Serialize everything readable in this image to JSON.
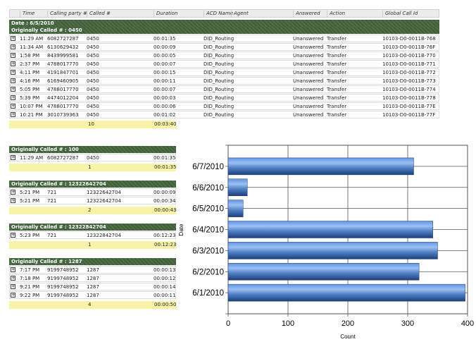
{
  "columns": [
    "Time",
    "Calling party #",
    "Called #",
    "Duration",
    "ACD Name",
    "Agent",
    "Answered",
    "Action",
    "Global Call Id"
  ],
  "date_band": "Date : 6/5/2010",
  "main_group": {
    "title": "Originally Called # : 0450",
    "rows": [
      [
        "11:29 AM",
        "6082727287",
        "0450",
        "00:01:35",
        "DID_Routing",
        "",
        "Unanswered",
        "Transfer",
        "10103-D0-0011B-768"
      ],
      [
        "11:34 AM",
        "6130629432",
        "0450",
        "00:00:09",
        "DID_Routing",
        "",
        "Unanswered",
        "Transfer",
        "10103-D0-0011B-76F"
      ],
      [
        "1:58 PM",
        "8439999581",
        "0450",
        "00:00:05",
        "DID_Routing",
        "",
        "Unanswered",
        "Transfer",
        "10103-D0-0011B-770"
      ],
      [
        "2:37 PM",
        "4788017770",
        "0450",
        "00:00:07",
        "DID_Routing",
        "",
        "Unanswered",
        "Transfer",
        "10103-D0-0011B-771"
      ],
      [
        "4:11 PM",
        "4191847701",
        "0450",
        "00:00:15",
        "DID_Routing",
        "",
        "Unanswered",
        "Transfer",
        "10103-D0-0011B-772"
      ],
      [
        "4:16 PM",
        "6169460905",
        "0450",
        "00:00:11",
        "DID_Routing",
        "",
        "Unanswered",
        "Transfer",
        "10103-D0-0011B-773"
      ],
      [
        "5:05 PM",
        "4788017770",
        "0450",
        "00:00:07",
        "DID_Routing",
        "",
        "Unanswered",
        "Transfer",
        "10103-D0-0011B-774"
      ],
      [
        "5:39 PM",
        "4474012204",
        "0450",
        "00:00:03",
        "DID_Routing",
        "",
        "Unanswered",
        "Transfer",
        "10103-D0-0011B-778"
      ],
      [
        "10:07 PM",
        "4788017770",
        "0450",
        "00:00:06",
        "DID_Routing",
        "",
        "Unanswered",
        "Transfer",
        "10103-D0-0011B-77E"
      ],
      [
        "10:21 PM",
        "3010739363",
        "0450",
        "00:01:02",
        "DID_Routing",
        "",
        "Unanswered",
        "Transfer",
        "10103-D0-0011B-77F"
      ]
    ],
    "count": "10",
    "total": "00:03:40"
  },
  "groups": [
    {
      "title": "Originally Called # : 100",
      "rows": [
        [
          "11:29 AM",
          "6082727287",
          "0450",
          "00:01:35"
        ]
      ],
      "count": "1",
      "total": "00:01:35"
    },
    {
      "title": "Originally Called # : 12322642704",
      "rows": [
        [
          "5:21 PM",
          "721",
          "12322642704",
          "00:00:09"
        ],
        [
          "5:21 PM",
          "721",
          "12322642704",
          "00:00:34"
        ]
      ],
      "count": "2",
      "total": "00:00:43"
    },
    {
      "title": "Originally Called # : 12322842704",
      "rows": [
        [
          "5:23 PM",
          "721",
          "12322842704",
          "00:12:23"
        ]
      ],
      "count": "1",
      "total": "00:12:23"
    },
    {
      "title": "Originally Called # : 1287",
      "rows": [
        [
          "7:17 PM",
          "9199748952",
          "1287",
          "00:00:13"
        ],
        [
          "7:18 PM",
          "9199748952",
          "1287",
          "00:00:12"
        ],
        [
          "9:21 PM",
          "9199748952",
          "1287",
          "00:00:14"
        ],
        [
          "9:22 PM",
          "9199748952",
          "1287",
          "00:00:11"
        ]
      ],
      "count": "4",
      "total": "00:00:50"
    }
  ],
  "chart_data": {
    "type": "bar",
    "orientation": "horizontal",
    "categories": [
      "6/7/2010",
      "6/6/2010",
      "6/5/2010",
      "6/4/2010",
      "6/3/2010",
      "6/2/2010",
      "6/1/2010"
    ],
    "values": [
      310,
      32,
      25,
      342,
      350,
      319,
      396
    ],
    "xlabel": "Count",
    "ylabel": "Date",
    "xlim": [
      0,
      400
    ],
    "xticks": [
      "0",
      "100",
      "200",
      "300",
      "400"
    ],
    "grid": true,
    "bar_color": "#4a7fd0"
  }
}
